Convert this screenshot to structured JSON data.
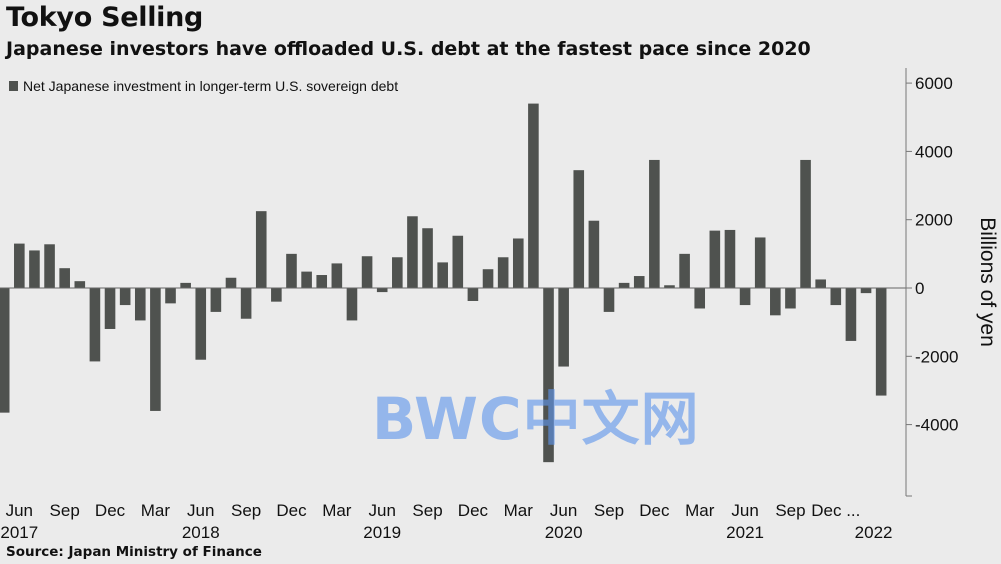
{
  "title": "Tokyo Selling",
  "subtitle": "Japanese investors have offloaded U.S. debt at the fastest pace since 2020",
  "source": "Source: Japan Ministry of Finance",
  "watermark": "BWC中文网",
  "chart_data": {
    "type": "bar",
    "series": [
      {
        "name": "Net Japanese investment in longer-term U.S. sovereign debt",
        "color": "#4f524f",
        "values": [
          -3650,
          1300,
          1100,
          1280,
          580,
          200,
          -2150,
          -1200,
          -500,
          -950,
          -3600,
          -450,
          150,
          -2100,
          -700,
          300,
          -900,
          2250,
          -400,
          1000,
          480,
          380,
          720,
          -950,
          930,
          -120,
          900,
          2100,
          1750,
          750,
          1530,
          -380,
          550,
          900,
          1450,
          5400,
          -5100,
          -2300,
          3450,
          1970,
          -700,
          150,
          350,
          3750,
          80,
          1000,
          -600,
          1680,
          1700,
          -500,
          1480,
          -800,
          -600,
          3750,
          250,
          -500,
          -1550,
          -150,
          -3150
        ]
      }
    ],
    "x_tick_labels": [
      {
        "label": "Jun",
        "index": 1
      },
      {
        "label": "Sep",
        "index": 4
      },
      {
        "label": "Dec",
        "index": 7
      },
      {
        "label": "Mar",
        "index": 10
      },
      {
        "label": "Jun",
        "index": 13
      },
      {
        "label": "Sep",
        "index": 16
      },
      {
        "label": "Dec",
        "index": 19
      },
      {
        "label": "Mar",
        "index": 22
      },
      {
        "label": "Jun",
        "index": 25
      },
      {
        "label": "Sep",
        "index": 28
      },
      {
        "label": "Dec",
        "index": 31
      },
      {
        "label": "Mar",
        "index": 34
      },
      {
        "label": "Jun",
        "index": 37
      },
      {
        "label": "Sep",
        "index": 40
      },
      {
        "label": "Dec",
        "index": 43
      },
      {
        "label": "Mar",
        "index": 46
      },
      {
        "label": "Jun",
        "index": 49
      },
      {
        "label": "Sep",
        "index": 52
      },
      {
        "label": "Dec ...",
        "index": 55
      }
    ],
    "year_labels": [
      {
        "label": "2017",
        "index": 1
      },
      {
        "label": "2018",
        "index": 13
      },
      {
        "label": "2019",
        "index": 25
      },
      {
        "label": "2020",
        "index": 37
      },
      {
        "label": "2021",
        "index": 49
      },
      {
        "label": "2022",
        "index": 57.5
      }
    ],
    "ylabel": "Billions of yen",
    "ylim": [
      -6000,
      6000
    ],
    "yticks": [
      6000,
      4000,
      2000,
      0,
      -2000,
      -4000
    ],
    "grid": false,
    "legend_position": "top-left"
  }
}
